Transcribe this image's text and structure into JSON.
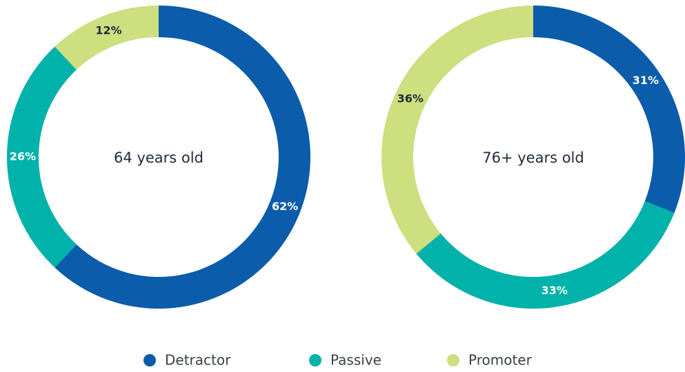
{
  "chart_data": [
    {
      "type": "pie",
      "title": "64 years old",
      "categories": [
        "Detractor",
        "Passive",
        "Promoter"
      ],
      "values": [
        62,
        26,
        12
      ],
      "value_labels": [
        "62%",
        "26%",
        "12%"
      ],
      "colors": [
        "#0b5cab",
        "#00b2a9",
        "#cddf7f"
      ]
    },
    {
      "type": "pie",
      "title": "76+ years old",
      "categories": [
        "Detractor",
        "Passive",
        "Promoter"
      ],
      "values": [
        31,
        33,
        36
      ],
      "value_labels": [
        "31%",
        "33%",
        "36%"
      ],
      "colors": [
        "#0b5cab",
        "#00b2a9",
        "#cddf7f"
      ]
    }
  ]
}
